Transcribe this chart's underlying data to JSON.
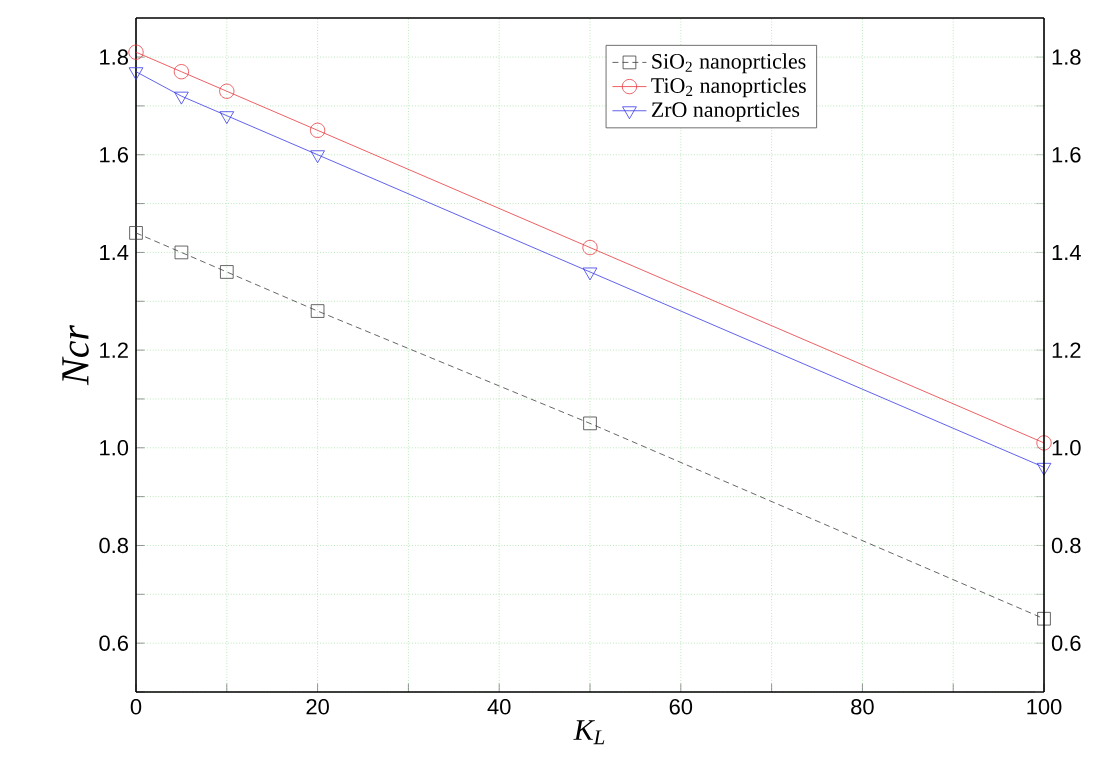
{
  "chart_data": {
    "type": "line",
    "xlabel": "K$_{L}$",
    "ylabel": "Ncr",
    "x": [
      0,
      5,
      10,
      20,
      50,
      100
    ],
    "series": [
      {
        "name": "SiO$_{2}$ nanoprticles",
        "color": "#404040",
        "values": [
          1.44,
          1.4,
          1.36,
          1.28,
          1.05,
          0.65
        ],
        "marker": "square",
        "line_style": "dashed"
      },
      {
        "name": "TiO$_{2}$ nanoprticles",
        "color": "#e8383d",
        "values": [
          1.81,
          1.77,
          1.73,
          1.65,
          1.41,
          1.01
        ],
        "marker": "circle",
        "line_style": "solid"
      },
      {
        "name": "ZrO nanoprticles",
        "color": "#3a3ae8",
        "values": [
          1.77,
          1.72,
          1.68,
          1.6,
          1.36,
          0.96
        ],
        "marker": "triangle",
        "line_style": "solid"
      }
    ],
    "xlim": [
      0,
      100
    ],
    "xticks": [
      0,
      {
        "value": 10,
        "label": null
      },
      20,
      {
        "value": 30,
        "label": null
      },
      40,
      {
        "value": 50,
        "label": null
      },
      60,
      {
        "value": 70,
        "label": null
      },
      80,
      {
        "value": 90,
        "label": null
      },
      100
    ],
    "ylim": [
      0.5,
      1.88
    ],
    "yticks": [
      {
        "value": 0.5,
        "label": null
      },
      0.6,
      {
        "value": 0.7,
        "label": null
      },
      0.8,
      {
        "value": 0.9,
        "label": null
      },
      {
        "value": 1,
        "label": "1.0"
      },
      {
        "value": 1.1,
        "label": null
      },
      1.2,
      {
        "value": 1.3,
        "label": null
      },
      1.4,
      {
        "value": 1.5,
        "label": null
      },
      1.6,
      {
        "value": 1.7,
        "label": null
      },
      1.8
    ],
    "y2lim": [
      0.5,
      1.88
    ],
    "y2ticks": [
      {
        "value": 0.5,
        "label": null
      },
      0.6,
      {
        "value": 0.7,
        "label": null
      },
      0.8,
      {
        "value": 0.9,
        "label": null
      },
      {
        "value": 1,
        "label": "1.0"
      },
      {
        "value": 1.1,
        "label": null
      },
      1.2,
      {
        "value": 1.3,
        "label": null
      },
      1.4,
      {
        "value": 1.5,
        "label": null
      },
      1.6,
      {
        "value": 1.7,
        "label": null
      },
      1.8
    ],
    "grid": true,
    "legend": "top right"
  }
}
